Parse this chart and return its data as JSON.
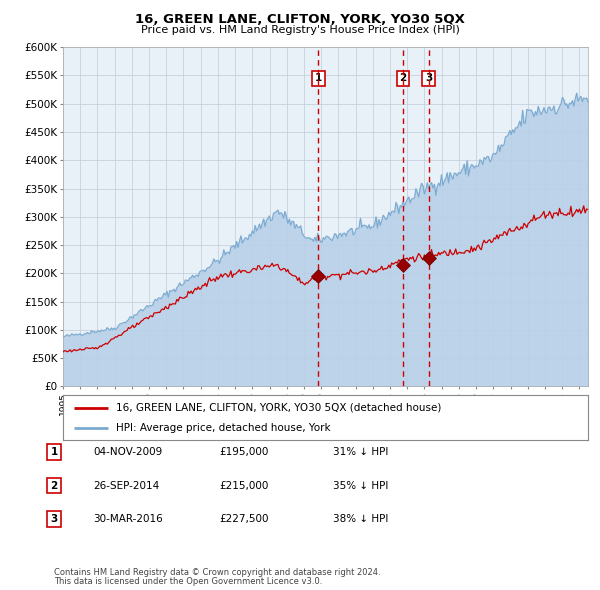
{
  "title": "16, GREEN LANE, CLIFTON, YORK, YO30 5QX",
  "subtitle": "Price paid vs. HM Land Registry's House Price Index (HPI)",
  "legend_line1": "16, GREEN LANE, CLIFTON, YORK, YO30 5QX (detached house)",
  "legend_line2": "HPI: Average price, detached house, York",
  "footer1": "Contains HM Land Registry data © Crown copyright and database right 2024.",
  "footer2": "This data is licensed under the Open Government Licence v3.0.",
  "transactions": [
    {
      "num": 1,
      "date": "04-NOV-2009",
      "price": 195000,
      "hpi_diff": "31% ↓ HPI"
    },
    {
      "num": 2,
      "date": "26-SEP-2014",
      "price": 215000,
      "hpi_diff": "35% ↓ HPI"
    },
    {
      "num": 3,
      "date": "30-MAR-2016",
      "price": 227500,
      "hpi_diff": "38% ↓ HPI"
    }
  ],
  "transaction_dates_decimal": [
    2009.843,
    2014.737,
    2016.247
  ],
  "transaction_prices": [
    195000,
    215000,
    227500
  ],
  "hpi_color": "#b8d0e8",
  "hpi_line_color": "#7aaad0",
  "price_color": "#cc0000",
  "vline_color": "#cc0000",
  "plot_bg": "#e8f0f8",
  "grid_color": "#c0ccd8",
  "ylim": [
    0,
    600000
  ],
  "yticks": [
    0,
    50000,
    100000,
    150000,
    200000,
    250000,
    300000,
    350000,
    400000,
    450000,
    500000,
    550000,
    600000
  ],
  "xlim_start": 1995.0,
  "xlim_end": 2025.5
}
